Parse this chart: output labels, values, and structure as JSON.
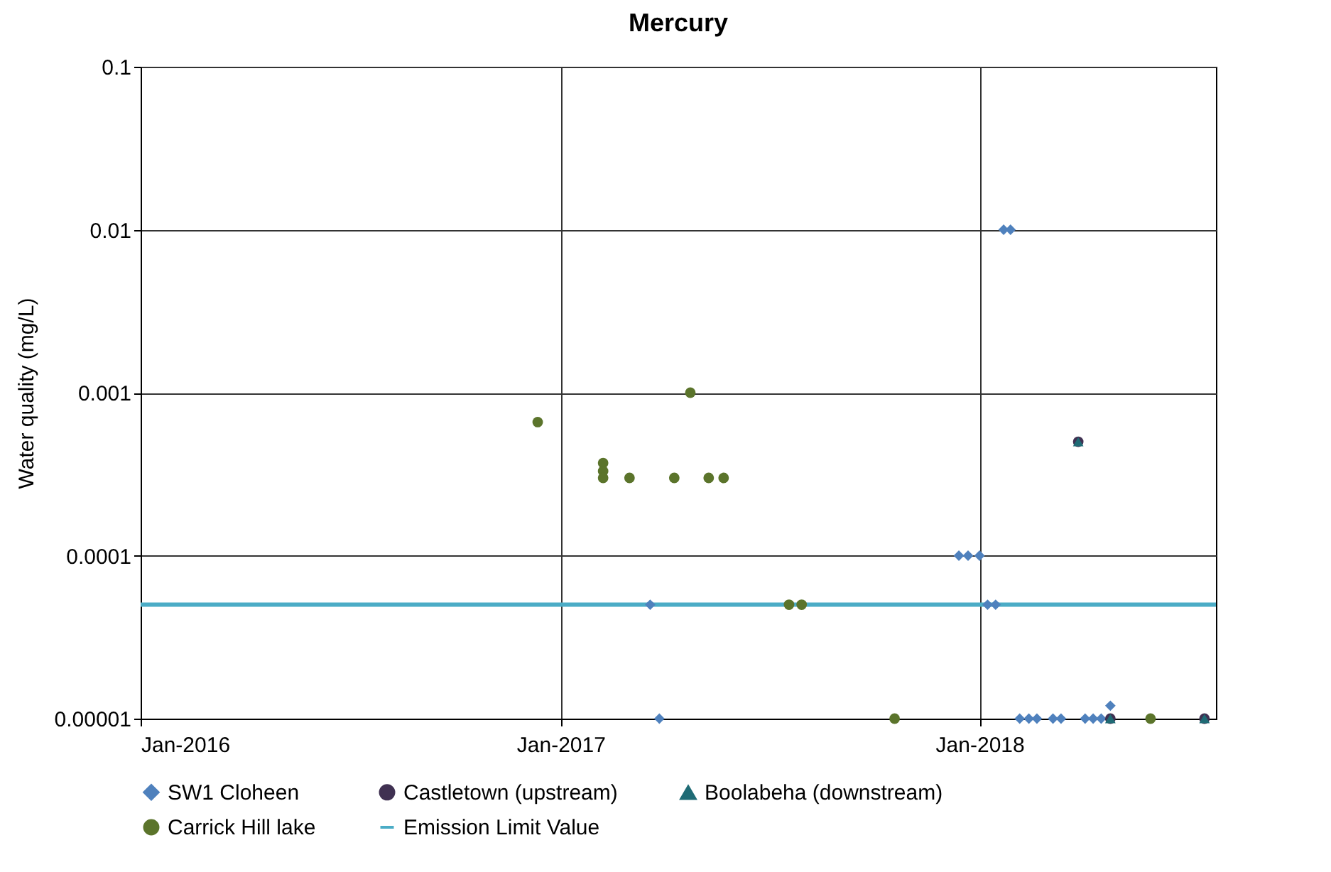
{
  "chart_data": {
    "type": "scatter",
    "title": "Mercury",
    "ylabel": "Water quality (mg/L)",
    "log": true,
    "xlim": [
      "2016-01-01",
      "2018-07-26"
    ],
    "xticks": [
      {
        "value": "2016-01-01",
        "label": "Jan-2016"
      },
      {
        "value": "2017-01-01",
        "label": "Jan-2017"
      },
      {
        "value": "2018-01-01",
        "label": "Jan-2018"
      }
    ],
    "ylim": [
      1e-05,
      0.1
    ],
    "yticks": [
      {
        "value": 1e-05,
        "label": "0.00001"
      },
      0.0001,
      0.001,
      0.01,
      0.1
    ],
    "grid": true,
    "legend": "bottom",
    "series": [
      {
        "name": "SW1 Cloheen",
        "marker": "diamond",
        "color": "#4f81bd",
        "x": [
          "2017-03-20",
          "2017-03-28",
          "2017-12-14",
          "2017-12-22",
          "2018-01-01",
          "2018-01-08",
          "2018-01-15",
          "2018-01-22",
          "2018-01-28",
          "2018-02-05",
          "2018-02-13",
          "2018-02-20",
          "2018-03-06",
          "2018-03-13",
          "2018-04-03",
          "2018-04-10",
          "2018-04-17",
          "2018-04-25"
        ],
        "values": [
          5e-05,
          1e-05,
          0.0001,
          0.0001,
          0.0001,
          5e-05,
          5e-05,
          0.01,
          0.01,
          1e-05,
          1e-05,
          1e-05,
          1e-05,
          1e-05,
          1e-05,
          1e-05,
          1e-05,
          1.2e-05
        ]
      },
      {
        "name": "Castletown (upstream)",
        "marker": "circle",
        "color": "#403152",
        "x": [
          "2018-03-28",
          "2018-04-25",
          "2018-07-16"
        ],
        "values": [
          0.0005,
          1e-05,
          1e-05
        ]
      },
      {
        "name": "Boolabeha (downstream)",
        "marker": "triangle",
        "color": "#1f6b75",
        "x": [
          "2018-03-28",
          "2018-04-25",
          "2018-07-16"
        ],
        "values": [
          0.0005,
          1e-05,
          1e-05
        ]
      },
      {
        "name": "Carrick Hill lake",
        "marker": "circle",
        "color": "#5b742b",
        "x": [
          "2016-12-12",
          "2017-02-07",
          "2017-02-07",
          "2017-02-07",
          "2017-03-02",
          "2017-04-10",
          "2017-04-24",
          "2017-05-10",
          "2017-05-23",
          "2017-07-19",
          "2017-07-30",
          "2017-10-19",
          "2018-05-30"
        ],
        "values": [
          0.00066,
          0.00037,
          0.00033,
          0.0003,
          0.0003,
          0.0003,
          0.001,
          0.0003,
          0.0003,
          5e-05,
          5e-05,
          1e-05,
          1e-05
        ]
      },
      {
        "name": "Emission Limit Value",
        "type": "line",
        "marker": "none",
        "line_style": "solid",
        "color": "#4bacc6",
        "x": [
          "2016-01-01",
          "2018-07-26"
        ],
        "values": [
          5e-05,
          5e-05
        ]
      }
    ]
  }
}
